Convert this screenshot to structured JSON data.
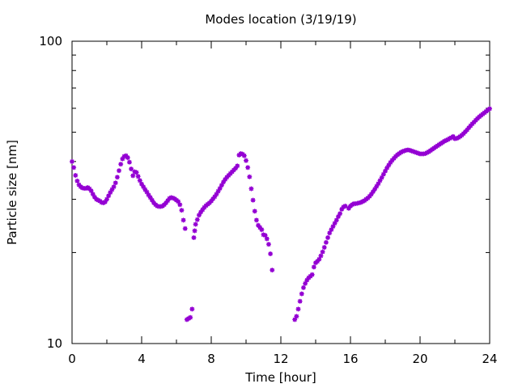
{
  "chart_data": {
    "type": "scatter",
    "title": "Modes location (3/19/19)",
    "xlabel": "Time [hour]",
    "ylabel": "Particle size [nm]",
    "xlim": [
      0,
      24
    ],
    "ylim": [
      10,
      100
    ],
    "yscale": "log",
    "grid": false,
    "legend": "none",
    "marker_color": "#9400d3",
    "x_ticks": [
      0,
      4,
      8,
      12,
      16,
      20,
      24
    ],
    "x_tick_labels": [
      "0",
      "4",
      "8",
      "12",
      "16",
      "20",
      "24"
    ],
    "y_ticks": [
      10,
      100
    ],
    "y_tick_labels": [
      "10",
      "100"
    ],
    "series": [
      {
        "x": [
          0.0,
          0.1,
          0.2,
          0.3,
          0.4,
          0.5,
          0.6,
          0.7,
          0.8,
          0.9,
          1.0,
          1.1,
          1.2,
          1.3,
          1.4,
          1.5,
          1.6,
          1.7,
          1.8,
          1.9,
          2.0,
          2.1,
          2.2,
          2.3,
          2.4,
          2.5,
          2.6,
          2.7,
          2.8,
          2.9,
          3.0,
          3.1,
          3.2,
          3.3,
          3.4,
          3.5,
          3.6,
          3.7,
          3.8,
          3.9,
          4.0,
          4.1,
          4.2,
          4.3,
          4.4,
          4.5,
          4.6,
          4.7,
          4.8,
          4.9,
          5.0,
          5.1,
          5.2,
          5.3,
          5.4,
          5.5,
          5.6,
          5.7,
          5.8,
          5.9,
          6.0,
          6.1,
          6.2,
          6.3,
          6.4,
          6.5,
          6.6,
          6.7,
          6.8,
          6.9,
          7.0,
          7.05,
          7.1,
          7.2,
          7.3,
          7.4,
          7.5,
          7.6,
          7.7,
          7.8,
          7.9,
          8.0,
          8.1,
          8.2,
          8.3,
          8.4,
          8.5,
          8.6,
          8.7,
          8.8,
          8.9,
          9.0,
          9.1,
          9.2,
          9.3,
          9.4,
          9.5,
          9.6,
          9.7,
          9.8,
          9.9,
          10.0,
          10.1,
          10.2,
          10.3,
          10.4,
          10.5,
          10.6,
          10.7,
          10.8,
          10.9,
          11.0,
          11.1,
          11.2,
          11.3,
          11.4,
          11.5,
          12.8,
          12.9,
          13.0,
          13.1,
          13.2,
          13.3,
          13.4,
          13.5,
          13.6,
          13.7,
          13.8,
          13.9,
          14.0,
          14.1,
          14.2,
          14.3,
          14.4,
          14.5,
          14.6,
          14.7,
          14.8,
          14.9,
          15.0,
          15.1,
          15.2,
          15.3,
          15.4,
          15.5,
          15.6,
          15.7,
          15.9,
          16.0,
          16.1,
          16.2,
          16.3,
          16.4,
          16.5,
          16.6,
          16.7,
          16.8,
          16.9,
          17.0,
          17.1,
          17.2,
          17.3,
          17.4,
          17.5,
          17.6,
          17.7,
          17.8,
          17.9,
          18.0,
          18.1,
          18.2,
          18.3,
          18.4,
          18.5,
          18.6,
          18.7,
          18.8,
          18.9,
          19.0,
          19.1,
          19.2,
          19.3,
          19.4,
          19.5,
          19.6,
          19.7,
          19.8,
          19.9,
          20.0,
          20.1,
          20.2,
          20.3,
          20.4,
          20.5,
          20.6,
          20.7,
          20.8,
          20.9,
          21.0,
          21.1,
          21.2,
          21.3,
          21.4,
          21.5,
          21.6,
          21.7,
          21.8,
          21.9,
          22.0,
          22.1,
          22.2,
          22.3,
          22.4,
          22.5,
          22.6,
          22.7,
          22.8,
          22.9,
          23.0,
          23.1,
          23.2,
          23.3,
          23.4,
          23.5,
          23.6,
          23.7,
          23.8,
          23.9,
          24.0
        ],
        "y": [
          40.0,
          38.2,
          36.0,
          34.5,
          33.5,
          33.0,
          32.7,
          32.6,
          32.6,
          32.8,
          32.5,
          32.0,
          31.2,
          30.5,
          30.0,
          29.8,
          29.6,
          29.3,
          29.2,
          29.4,
          30.0,
          30.8,
          31.6,
          32.3,
          33.0,
          34.0,
          35.5,
          37.3,
          39.2,
          40.8,
          41.6,
          41.8,
          41.2,
          39.8,
          37.8,
          35.9,
          37.0,
          36.8,
          35.7,
          34.6,
          33.7,
          33.0,
          32.3,
          31.7,
          31.0,
          30.4,
          29.8,
          29.2,
          28.8,
          28.5,
          28.4,
          28.4,
          28.5,
          28.8,
          29.2,
          29.7,
          30.2,
          30.4,
          30.3,
          30.1,
          29.8,
          29.5,
          28.8,
          27.6,
          25.6,
          24.0,
          12.0,
          12.1,
          12.2,
          13.0,
          22.4,
          23.6,
          24.8,
          25.7,
          26.6,
          27.2,
          27.7,
          28.2,
          28.6,
          28.9,
          29.2,
          29.6,
          30.1,
          30.6,
          31.2,
          31.9,
          32.6,
          33.4,
          34.2,
          34.9,
          35.5,
          36.0,
          36.5,
          37.0,
          37.5,
          38.0,
          38.7,
          42.0,
          42.5,
          42.3,
          41.8,
          40.3,
          38.2,
          35.6,
          32.5,
          29.8,
          27.4,
          25.6,
          24.6,
          24.2,
          23.8,
          22.9,
          22.8,
          22.2,
          21.3,
          19.8,
          17.5,
          12.0,
          12.3,
          13.0,
          13.8,
          14.6,
          15.3,
          15.8,
          16.2,
          16.5,
          16.7,
          16.9,
          17.9,
          18.5,
          18.7,
          19.0,
          19.5,
          20.1,
          20.8,
          21.6,
          22.4,
          23.2,
          23.8,
          24.4,
          25.0,
          25.6,
          26.3,
          26.9,
          27.8,
          28.3,
          28.5,
          28.0,
          28.5,
          28.8,
          29.0,
          29.0,
          29.1,
          29.2,
          29.3,
          29.5,
          29.7,
          30.0,
          30.3,
          30.7,
          31.2,
          31.8,
          32.4,
          33.1,
          33.8,
          34.6,
          35.4,
          36.3,
          37.2,
          38.1,
          38.9,
          39.7,
          40.4,
          41.0,
          41.6,
          42.1,
          42.5,
          42.9,
          43.2,
          43.4,
          43.6,
          43.7,
          43.6,
          43.4,
          43.2,
          43.0,
          42.8,
          42.6,
          42.4,
          42.4,
          42.4,
          42.5,
          42.8,
          43.1,
          43.5,
          43.9,
          44.3,
          44.7,
          45.1,
          45.5,
          45.9,
          46.3,
          46.7,
          47.0,
          47.3,
          47.7,
          48.0,
          48.4,
          47.6,
          47.7,
          48.0,
          48.4,
          48.9,
          49.5,
          50.2,
          50.9,
          51.7,
          52.5,
          53.3,
          54.0,
          54.8,
          55.5,
          56.2,
          56.8,
          57.4,
          58.0,
          58.6,
          59.2,
          59.8
        ]
      }
    ]
  }
}
